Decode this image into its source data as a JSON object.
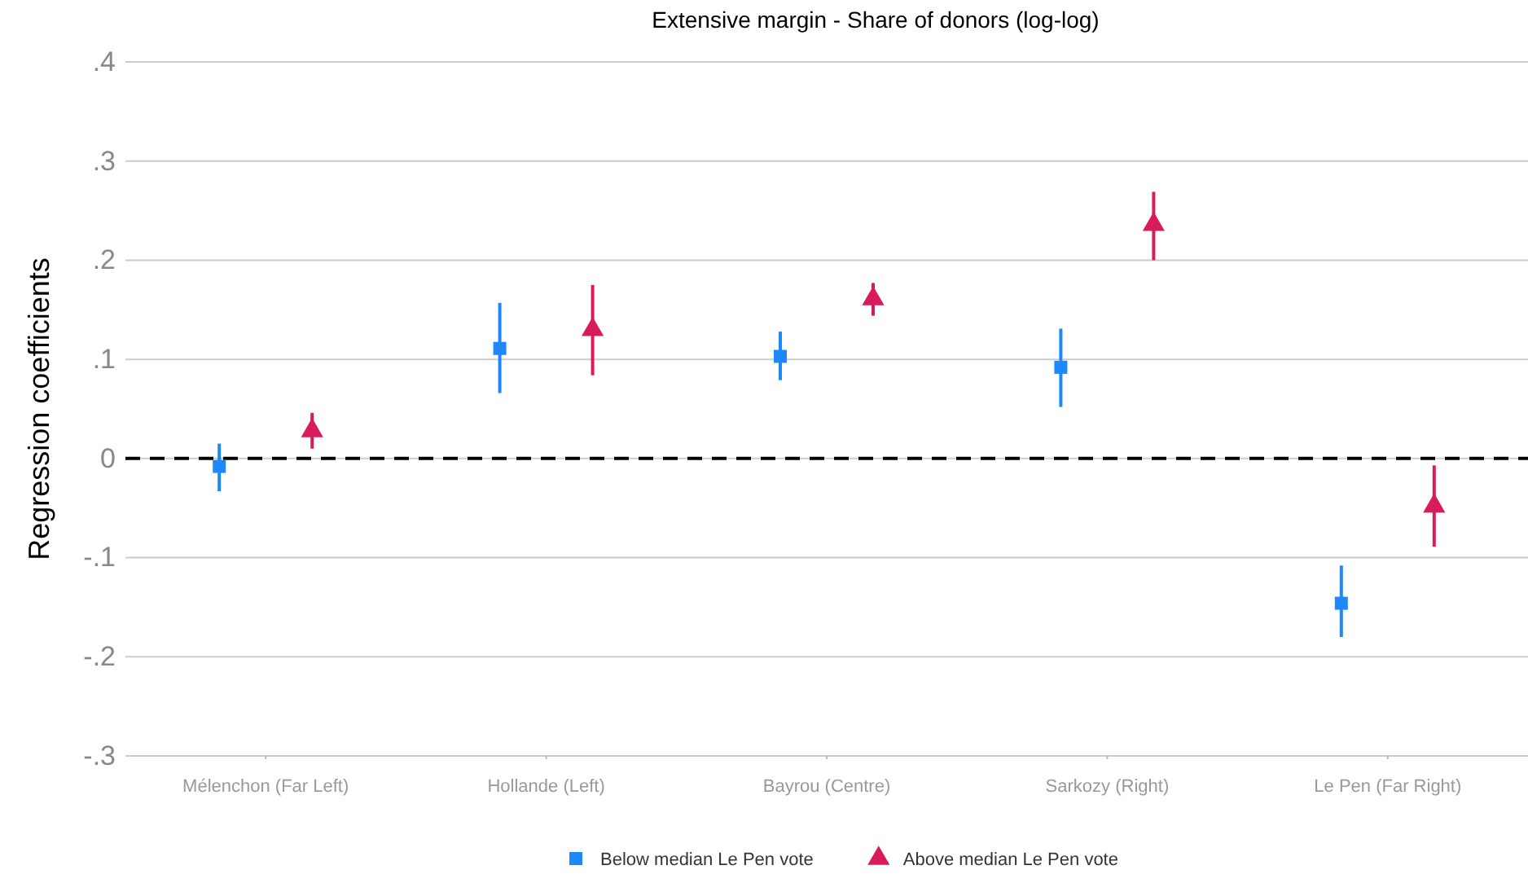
{
  "chart_data": {
    "type": "scatter",
    "title": "Extensive margin - Share of donors (log-log)",
    "ylabel": "Regression coefficients",
    "categories": [
      "Mélenchon (Far Left)",
      "Hollande (Left)",
      "Bayrou (Centre)",
      "Sarkozy (Right)",
      "Le Pen (Far Right)"
    ],
    "series": [
      {
        "name": "Below median Le Pen vote",
        "color": "#1e88fa",
        "marker": "square",
        "values": [
          -0.008,
          0.111,
          0.103,
          0.092,
          -0.146
        ],
        "errors": [
          [
            -0.033,
            0.015
          ],
          [
            0.066,
            0.157
          ],
          [
            0.079,
            0.128
          ],
          [
            0.052,
            0.131
          ],
          [
            -0.18,
            -0.108
          ]
        ]
      },
      {
        "name": "Above median Le Pen vote",
        "color": "#d81b5a",
        "marker": "triangle",
        "values": [
          0.028,
          0.13,
          0.161,
          0.236,
          -0.048
        ],
        "errors": [
          [
            0.01,
            0.046
          ],
          [
            0.084,
            0.175
          ],
          [
            0.144,
            0.177
          ],
          [
            0.2,
            0.269
          ],
          [
            -0.089,
            -0.007
          ]
        ]
      }
    ],
    "ylim": [
      -0.3,
      0.4
    ],
    "yticks": [
      {
        "value": -0.3,
        "label": "-.3"
      },
      {
        "value": -0.2,
        "label": "-.2"
      },
      {
        "value": -0.1,
        "label": "-.1"
      },
      0,
      {
        "value": 0.1,
        "label": ".1"
      },
      {
        "value": 0.2,
        "label": ".2"
      },
      {
        "value": 0.3,
        "label": ".3"
      },
      {
        "value": 0.4,
        "label": ".4"
      }
    ],
    "grid": "y",
    "legend": "bottom",
    "ref_lines": [
      {
        "axis": "y",
        "value": 0,
        "color": "#000000",
        "line_style": "dashed"
      }
    ]
  }
}
